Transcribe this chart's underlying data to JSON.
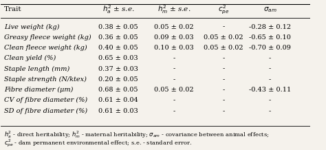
{
  "title": "",
  "columns": [
    "Trait",
    "h²ₐ ± s.e.",
    "h²ₘ ± s.e.",
    "c²ₚₑ",
    "σₐₘ"
  ],
  "col_headers_raw": [
    "Trait",
    "h^2_a +/- s.e.",
    "h^2_m +/- s.e.",
    "c^2_pe",
    "sigma_am"
  ],
  "rows": [
    [
      "Live weight (kg)",
      "0.38 ± 0.05",
      "0.05 ± 0.02",
      "-",
      "-0.28 ± 0.12"
    ],
    [
      "Greasy fleece weight (kg)",
      "0.36 ± 0.05",
      "0.09 ± 0.03",
      "0.05 ± 0.02",
      "-0.65 ± 0.10"
    ],
    [
      "Clean fleece weight (kg)",
      "0.40 ± 0.05",
      "0.10 ± 0.03",
      "0.05 ± 0.02",
      "-0.70 ± 0.09"
    ],
    [
      "Clean yield (%)",
      "0.65 ± 0.03",
      "-",
      "-",
      "-"
    ],
    [
      "Staple length (mm)",
      "0.37 ± 0.03",
      "-",
      "-",
      "-"
    ],
    [
      "Staple strength (N/ktex)",
      "0.20 ± 0.05",
      "-",
      "-",
      "-"
    ],
    [
      "Fibre diameter (μm)",
      "0.68 ± 0.05",
      "0.05 ± 0.02",
      "-",
      "-0.43 ± 0.11"
    ],
    [
      "CV of fibre diameter (%)",
      "0.61 ± 0.04",
      "-",
      "-",
      "-"
    ],
    [
      "SD of fibre diameter (%)",
      "0.61 ± 0.03",
      "-",
      "-",
      "-"
    ]
  ],
  "footnote1": "h²ₐ - direct heritability; h²ₘ - maternal heritability; σₐₘ - covariance between animal effects;",
  "footnote2": "c²ₚₑ - dam permanent environmental effect; s.e. - standard error.",
  "bg_color": "#f5f2ec",
  "header_fontsize": 7.5,
  "row_fontsize": 7.0,
  "footnote_fontsize": 6.0
}
